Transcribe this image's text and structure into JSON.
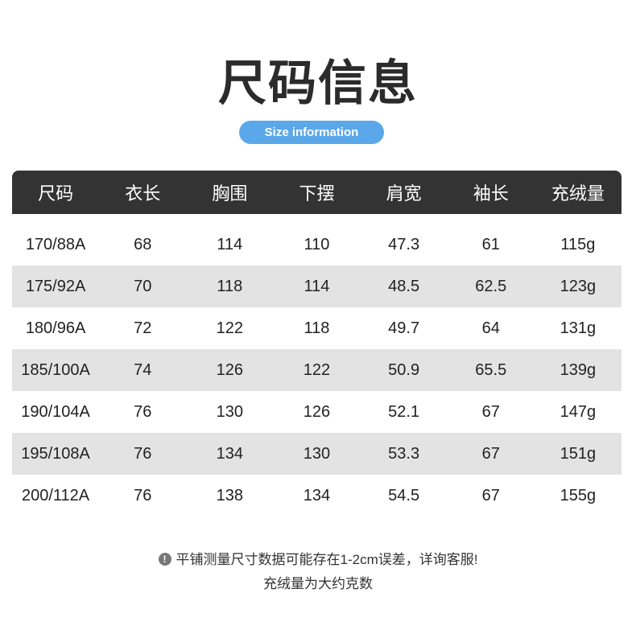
{
  "title": "尺码信息",
  "subtitle": "Size information",
  "accent_color": "#5aa8ea",
  "header_color": "#333333",
  "table": {
    "headers": [
      "尺码",
      "衣长",
      "胸围",
      "下摆",
      "肩宽",
      "袖长",
      "充绒量"
    ],
    "rows": [
      [
        "170/88A",
        "68",
        "114",
        "110",
        "47.3",
        "61",
        "115g"
      ],
      [
        "175/92A",
        "70",
        "118",
        "114",
        "48.5",
        "62.5",
        "123g"
      ],
      [
        "180/96A",
        "72",
        "122",
        "118",
        "49.7",
        "64",
        "131g"
      ],
      [
        "185/100A",
        "74",
        "126",
        "122",
        "50.9",
        "65.5",
        "139g"
      ],
      [
        "190/104A",
        "76",
        "130",
        "126",
        "52.1",
        "67",
        "147g"
      ],
      [
        "195/108A",
        "76",
        "134",
        "130",
        "53.3",
        "67",
        "151g"
      ],
      [
        "200/112A",
        "76",
        "138",
        "134",
        "54.5",
        "67",
        "155g"
      ]
    ]
  },
  "notes": {
    "icon": "exclamation-circle-icon",
    "icon_glyph": "!",
    "line1": "平铺测量尺寸数据可能存在1-2cm误差，详询客服!",
    "line2": "充绒量为大约克数"
  }
}
